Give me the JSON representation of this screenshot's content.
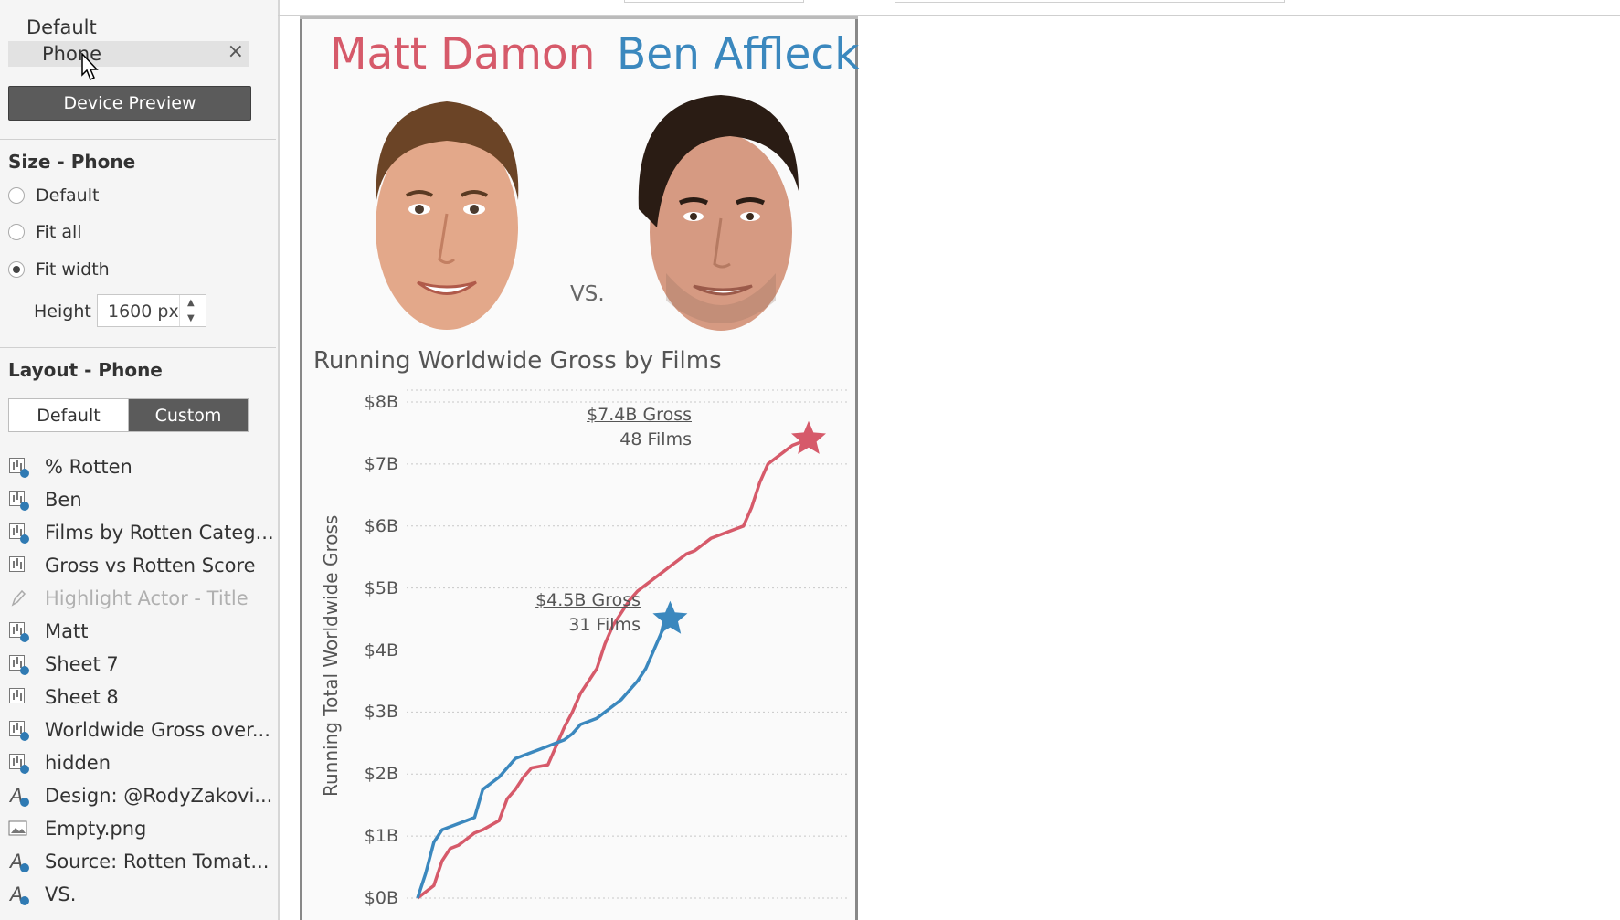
{
  "device": {
    "default_label": "Default",
    "phone_label": "Phone",
    "close_symbol": "×",
    "preview_button": "Device Preview"
  },
  "size_panel": {
    "title": "Size - Phone",
    "options": [
      {
        "label": "Default",
        "selected": false
      },
      {
        "label": "Fit all",
        "selected": false
      },
      {
        "label": "Fit width",
        "selected": true
      }
    ],
    "height_label": "Height",
    "height_value": "1600 px"
  },
  "layout_panel": {
    "title": "Layout - Phone",
    "tabs": [
      "Default",
      "Custom"
    ],
    "active_tab": "Custom",
    "items": [
      {
        "label": "% Rotten",
        "icon": "sheet-check-icon",
        "dim": false
      },
      {
        "label": "Ben",
        "icon": "sheet-check-icon",
        "dim": false
      },
      {
        "label": "Films by Rotten Categ...",
        "icon": "sheet-check-icon",
        "dim": false
      },
      {
        "label": "Gross vs Rotten Score",
        "icon": "sheet-icon",
        "dim": false
      },
      {
        "label": "Highlight Actor - Title",
        "icon": "pencil-icon",
        "dim": true
      },
      {
        "label": "Matt",
        "icon": "sheet-check-icon",
        "dim": false
      },
      {
        "label": "Sheet 7",
        "icon": "sheet-check-icon",
        "dim": false
      },
      {
        "label": "Sheet 8",
        "icon": "sheet-icon",
        "dim": false
      },
      {
        "label": "Worldwide Gross over...",
        "icon": "sheet-check-icon",
        "dim": false
      },
      {
        "label": "hidden",
        "icon": "sheet-check-icon",
        "dim": false
      },
      {
        "label": "Design: @RodyZakovi...",
        "icon": "text-check-icon",
        "dim": false
      },
      {
        "label": "Empty.png",
        "icon": "image-icon",
        "dim": false
      },
      {
        "label": "Source: Rotten Tomat...",
        "icon": "text-check-icon",
        "dim": false
      },
      {
        "label": "VS.",
        "icon": "text-check-icon",
        "dim": false
      }
    ]
  },
  "dashboard": {
    "name_left": "Matt Damon",
    "name_right": "Ben Affleck",
    "vs_label": "VS.",
    "colors": {
      "matt": "#d65a6a",
      "ben": "#3b88be"
    }
  },
  "chart_data": {
    "type": "line",
    "title": "Running Worldwide Gross by Films",
    "ylabel": "Running Total Worldwide Gross",
    "xlabel": "",
    "y_tick_labels": [
      "$0B",
      "$1B",
      "$2B",
      "$3B",
      "$4B",
      "$5B",
      "$6B",
      "$7B",
      "$8B"
    ],
    "ylim": [
      0,
      8
    ],
    "y_unit": "billions USD",
    "grid": true,
    "series": [
      {
        "name": "Matt Damon",
        "color": "#d65a6a",
        "films": [
          0,
          2,
          3,
          4,
          5,
          6,
          7,
          8,
          10,
          11,
          12,
          13,
          14,
          16,
          17,
          18,
          19,
          20,
          21,
          22,
          23,
          24,
          25,
          26,
          27,
          28,
          29,
          30,
          31,
          32,
          33,
          34,
          35,
          36,
          37,
          38,
          39,
          40,
          41,
          42,
          43,
          44,
          45,
          46,
          47,
          48
        ],
        "values": [
          0,
          0.2,
          0.6,
          0.8,
          0.85,
          0.95,
          1.05,
          1.1,
          1.25,
          1.6,
          1.75,
          1.95,
          2.1,
          2.15,
          2.45,
          2.75,
          3.0,
          3.3,
          3.5,
          3.7,
          4.1,
          4.4,
          4.6,
          4.8,
          4.95,
          5.05,
          5.15,
          5.25,
          5.35,
          5.45,
          5.55,
          5.6,
          5.7,
          5.8,
          5.85,
          5.9,
          5.95,
          6.0,
          6.3,
          6.7,
          7.0,
          7.1,
          7.2,
          7.3,
          7.35,
          7.4
        ],
        "annotation": {
          "gross": "$7.4B Gross",
          "films": "48 Films"
        }
      },
      {
        "name": "Ben Affleck",
        "color": "#3b88be",
        "films": [
          0,
          1,
          2,
          3,
          4,
          5,
          6,
          7,
          8,
          9,
          10,
          11,
          12,
          13,
          14,
          15,
          16,
          17,
          18,
          19,
          20,
          21,
          22,
          23,
          24,
          25,
          26,
          27,
          28,
          29,
          30,
          31
        ],
        "values": [
          0,
          0.4,
          0.9,
          1.1,
          1.15,
          1.2,
          1.25,
          1.3,
          1.75,
          1.85,
          1.95,
          2.1,
          2.25,
          2.3,
          2.35,
          2.4,
          2.45,
          2.5,
          2.55,
          2.65,
          2.8,
          2.85,
          2.9,
          3.0,
          3.1,
          3.2,
          3.35,
          3.5,
          3.7,
          4.0,
          4.3,
          4.5
        ],
        "annotation": {
          "gross": "$4.5B Gross",
          "films": "31 Films"
        }
      }
    ]
  }
}
